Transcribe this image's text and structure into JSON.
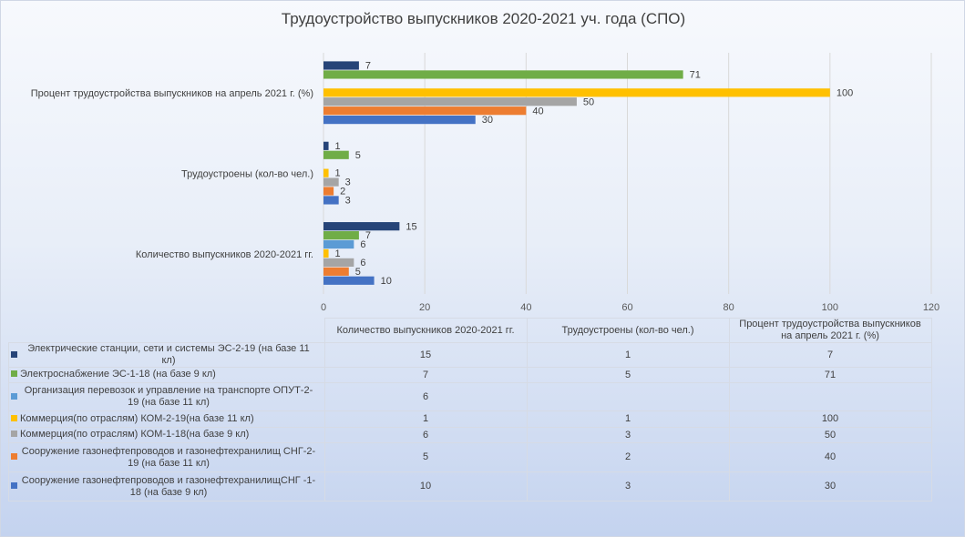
{
  "chart_data": {
    "type": "bar",
    "orientation": "horizontal",
    "title": "Трудоустройство выпускников 2020-2021 уч. года (СПО)",
    "categories": [
      "Количество выпускников 2020-2021 гг.",
      "Трудоустроены (кол-во чел.)",
      "Процент трудоустройства выпускников на апрель 2021 г. (%)"
    ],
    "table_headers": [
      "Количество выпускников 2020-2021 гг.",
      "Трудоустроены (кол-во чел.)",
      "Процент трудоустройства выпускников на апрель 2021 г. (%)"
    ],
    "xlim": [
      0,
      120
    ],
    "x_ticks": [
      "0",
      "20",
      "40",
      "60",
      "80",
      "100",
      "120"
    ],
    "grid": true,
    "legend": "data-table-below",
    "series": [
      {
        "name": "Электрические станции, сети и системы ЭС-2-19 (на базе 11 кл)",
        "color": "#264478",
        "values": [
          15,
          1,
          7
        ]
      },
      {
        "name": "Электроснабжение ЭС-1-18 (на базе 9 кл)",
        "color": "#70ad47",
        "values": [
          7,
          5,
          71
        ]
      },
      {
        "name": "Организация перевозок и управление на транспорте ОПУТ-2-19 (на базе 11 кл)",
        "color": "#5b9bd5",
        "values": [
          6,
          null,
          null
        ]
      },
      {
        "name": "Коммерция(по отраслям) КОМ-2-19(на базе 11 кл)",
        "color": "#ffc000",
        "values": [
          1,
          1,
          100
        ]
      },
      {
        "name": "Коммерция(по отраслям) КОМ-1-18(на базе 9 кл)",
        "color": "#a5a5a5",
        "values": [
          6,
          3,
          50
        ]
      },
      {
        "name": "Сооружение газонефтепроводов и газонефтехранилищ СНГ-2-19 (на базе 11 кл)",
        "color": "#ed7d31",
        "values": [
          5,
          2,
          40
        ]
      },
      {
        "name": "Сооружение газонефтепроводов и газонефтехранилищСНГ -1-18 (на базе 9 кл)",
        "color": "#4472c4",
        "values": [
          10,
          3,
          30
        ]
      }
    ]
  }
}
